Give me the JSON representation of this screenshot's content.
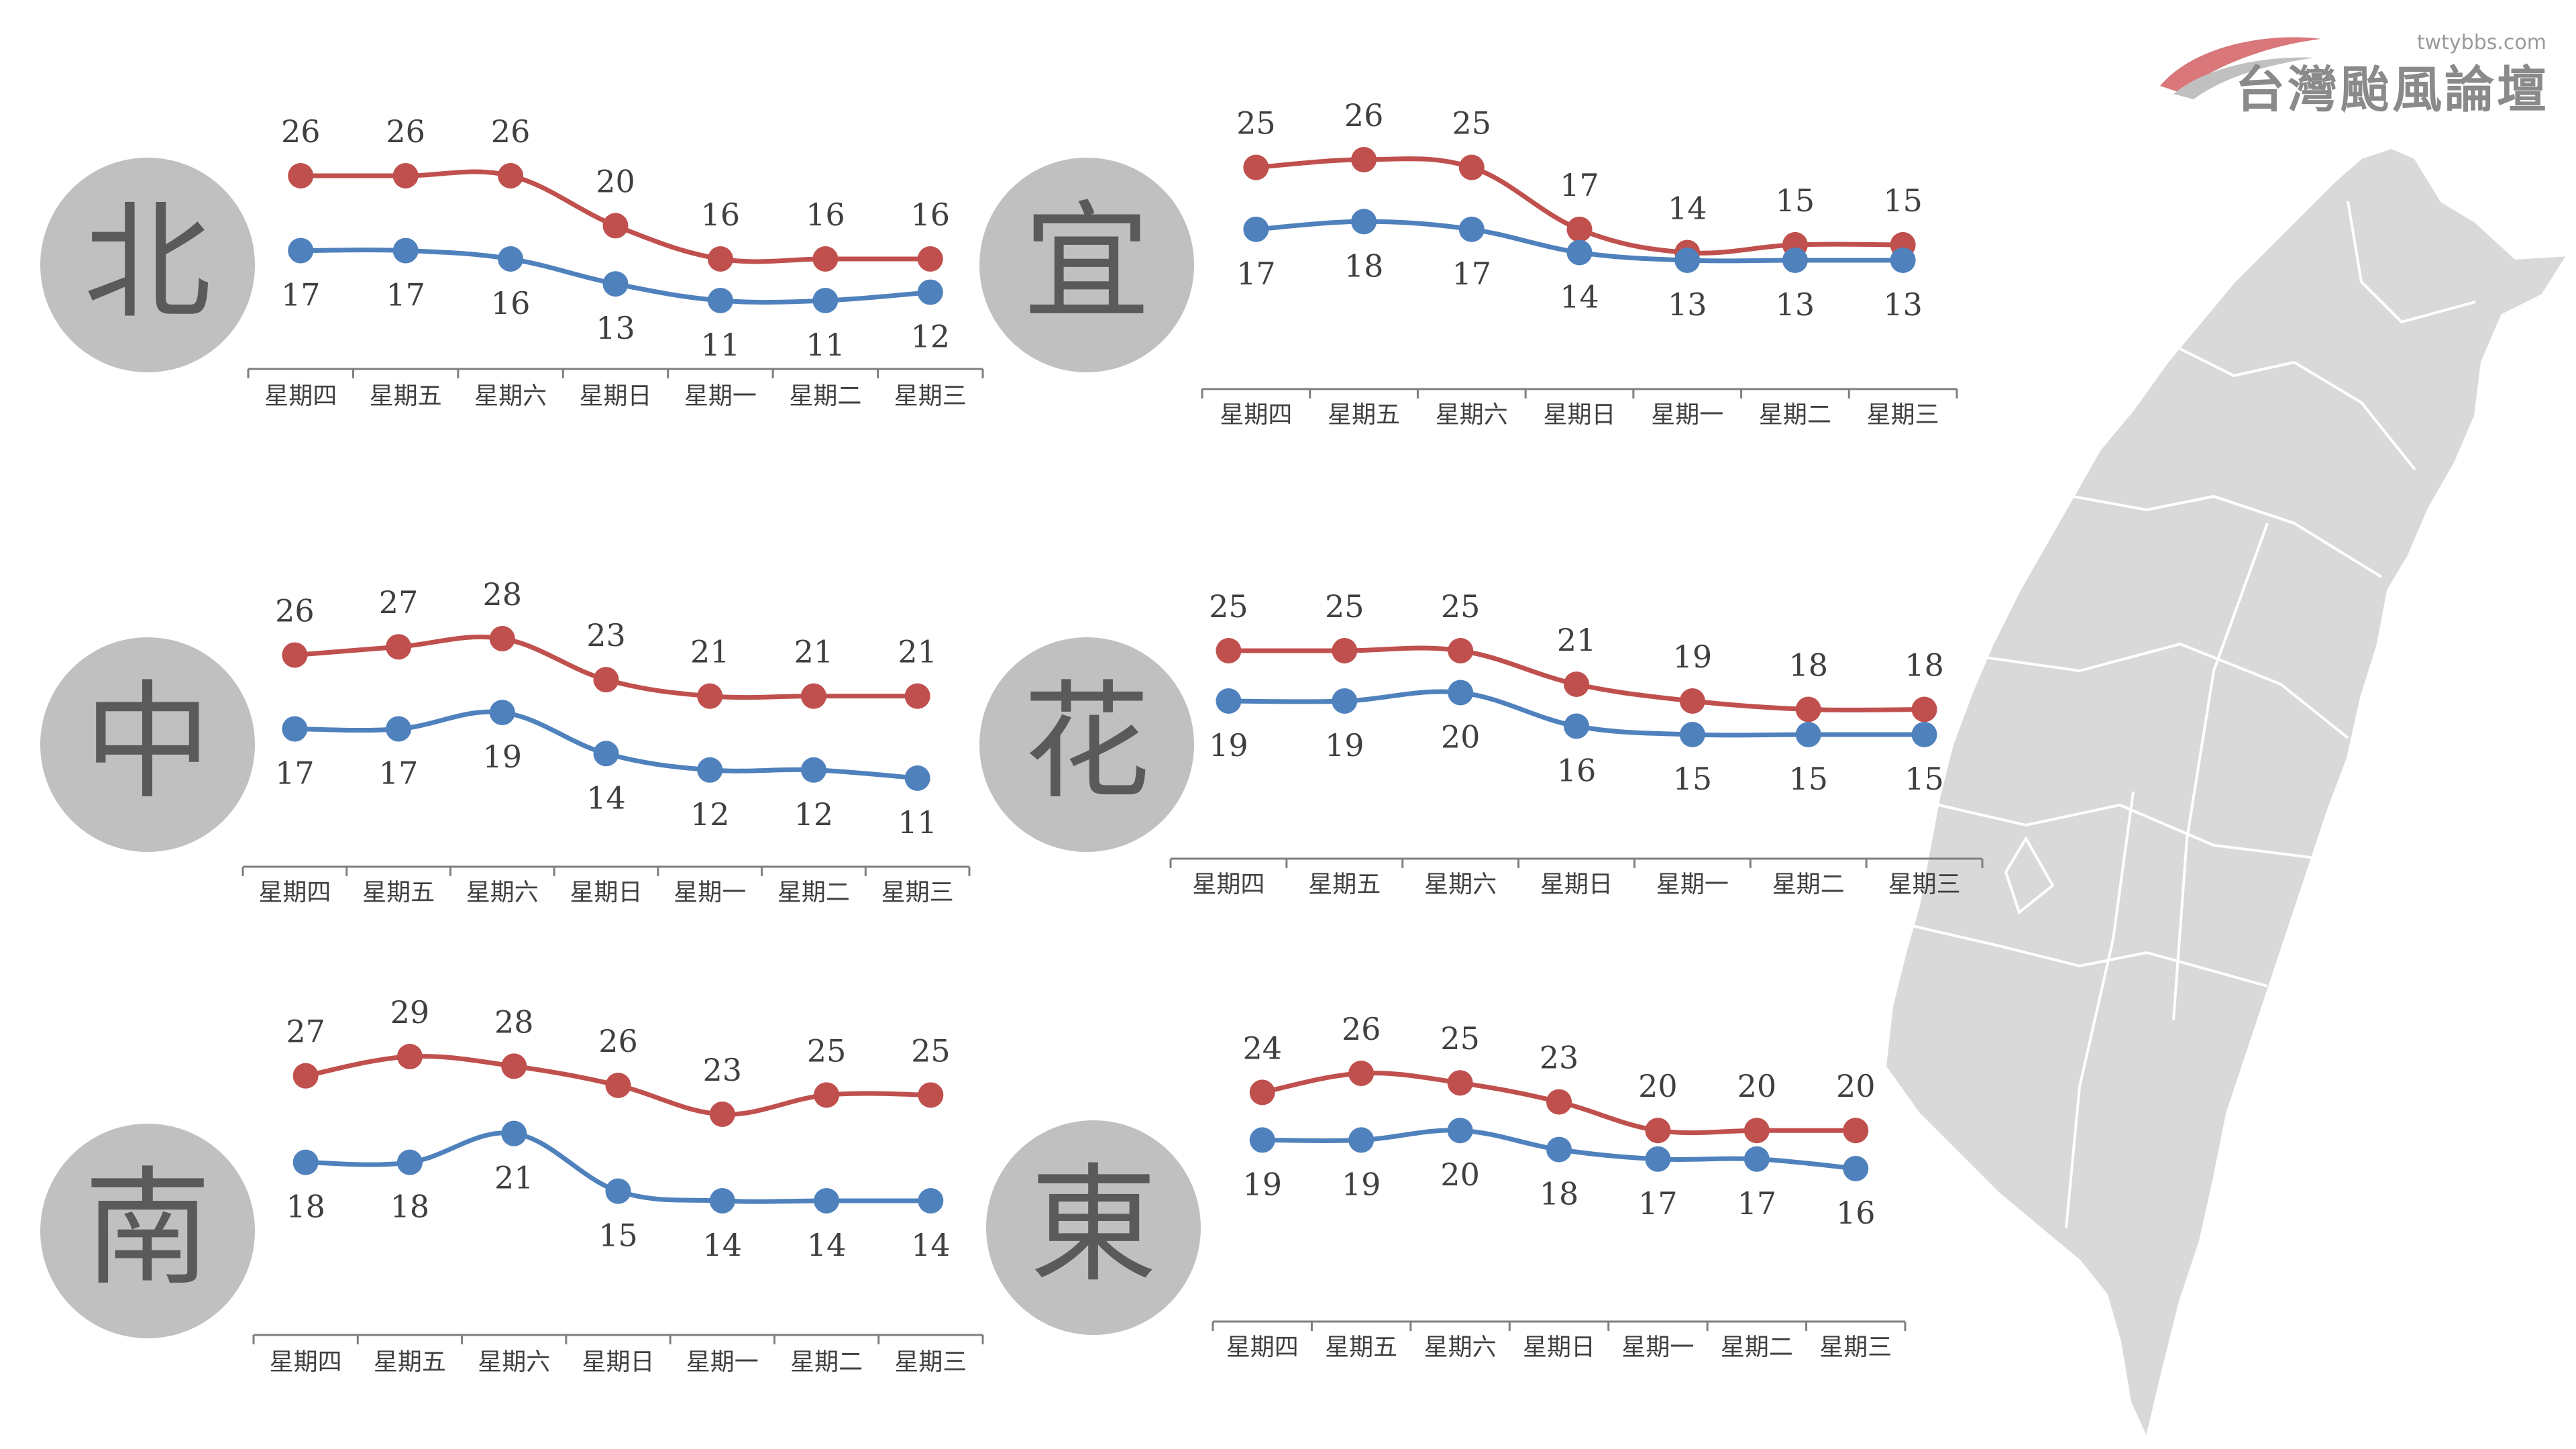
{
  "logo": {
    "site": "twtybbs.com",
    "name": "台灣颱風論壇"
  },
  "colors": {
    "high": "#c0504d",
    "low": "#4f81bd",
    "badge": "#c0c0c0",
    "badge_text": "#5a5a5a",
    "map_fill": "#d9d9d9",
    "axis": "#7f7f7f"
  },
  "chart_data": [
    {
      "type": "line",
      "region": "北",
      "categories": [
        "星期四",
        "星期五",
        "星期六",
        "星期日",
        "星期一",
        "星期二",
        "星期三"
      ],
      "series": [
        {
          "values": [
            26,
            26,
            26,
            20,
            16,
            16,
            16
          ]
        },
        {
          "values": [
            17,
            17,
            16,
            13,
            11,
            11,
            12
          ]
        }
      ]
    },
    {
      "type": "line",
      "region": "宜",
      "categories": [
        "星期四",
        "星期五",
        "星期六",
        "星期日",
        "星期一",
        "星期二",
        "星期三"
      ],
      "series": [
        {
          "values": [
            25,
            26,
            25,
            17,
            14,
            15,
            15
          ]
        },
        {
          "values": [
            17,
            18,
            17,
            14,
            13,
            13,
            13
          ]
        }
      ]
    },
    {
      "type": "line",
      "region": "中",
      "categories": [
        "星期四",
        "星期五",
        "星期六",
        "星期日",
        "星期一",
        "星期二",
        "星期三"
      ],
      "series": [
        {
          "values": [
            26,
            27,
            28,
            23,
            21,
            21,
            21
          ]
        },
        {
          "values": [
            17,
            17,
            19,
            14,
            12,
            12,
            11
          ]
        }
      ]
    },
    {
      "type": "line",
      "region": "花",
      "categories": [
        "星期四",
        "星期五",
        "星期六",
        "星期日",
        "星期一",
        "星期二",
        "星期三"
      ],
      "series": [
        {
          "values": [
            25,
            25,
            25,
            21,
            19,
            18,
            18
          ]
        },
        {
          "values": [
            19,
            19,
            20,
            16,
            15,
            15,
            15
          ]
        }
      ]
    },
    {
      "type": "line",
      "region": "南",
      "categories": [
        "星期四",
        "星期五",
        "星期六",
        "星期日",
        "星期一",
        "星期二",
        "星期三"
      ],
      "series": [
        {
          "values": [
            27,
            29,
            28,
            26,
            23,
            25,
            25
          ]
        },
        {
          "values": [
            18,
            18,
            21,
            15,
            14,
            14,
            14
          ]
        }
      ]
    },
    {
      "type": "line",
      "region": "東",
      "categories": [
        "星期四",
        "星期五",
        "星期六",
        "星期日",
        "星期一",
        "星期二",
        "星期三"
      ],
      "series": [
        {
          "values": [
            24,
            26,
            25,
            23,
            20,
            20,
            20
          ]
        },
        {
          "values": [
            19,
            19,
            20,
            18,
            17,
            17,
            16
          ]
        }
      ]
    }
  ]
}
